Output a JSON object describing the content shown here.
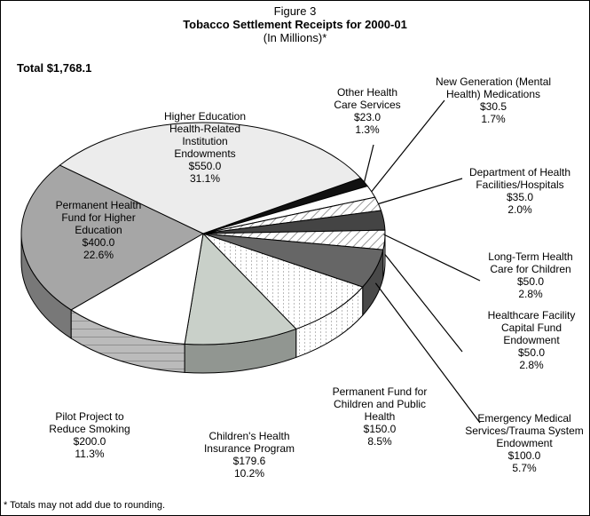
{
  "chart_data": {
    "type": "pie",
    "title": "Figure 3",
    "subtitle": "Tobacco Settlement Receipts for 2000-01",
    "units_note": "(In Millions)*",
    "total_label": "Total $1,768.1",
    "footnote": "* Totals may not add due to rounding.",
    "categories": [
      "Other Health Care Services",
      "New Generation (Mental Health) Medications",
      "Department of Health Facilities/Hospitals",
      "Long-Term Health Care for Children",
      "Healthcare Facility Capital Fund Endowment",
      "Emergency Medical Services/Trauma System Endowment",
      "Permanent Fund for Children and Public Health",
      "Children's Health Insurance Program",
      "Pilot Project to Reduce Smoking",
      "Permanent Health Fund for Higher Education",
      "Higher Education Health-Related Institution Endowments"
    ],
    "values": [
      23.0,
      30.5,
      35.0,
      50.0,
      50.0,
      100.0,
      150.0,
      179.6,
      200.0,
      400.0,
      550.0
    ],
    "value_labels": [
      "$23.0",
      "$30.5",
      "$35.0",
      "$50.0",
      "$50.0",
      "$100.0",
      "$150.0",
      "$179.6",
      "$200.0",
      "$400.0",
      "$550.0"
    ],
    "percentages": [
      1.3,
      1.7,
      2.0,
      2.8,
      2.8,
      5.7,
      8.5,
      10.2,
      11.3,
      22.6,
      31.1
    ],
    "percent_labels": [
      "1.3%",
      "1.7%",
      "2.0%",
      "2.8%",
      "2.8%",
      "5.7%",
      "8.5%",
      "10.2%",
      "11.3%",
      "22.6%",
      "31.1%"
    ],
    "colors": [
      "#111111",
      "#ffffff",
      "#ffffff",
      "#444444",
      "#ffffff",
      "#666666",
      "#ffffff",
      "#c9d0c9",
      "#ffffff",
      "#a6a6a6",
      "#ececec"
    ]
  }
}
